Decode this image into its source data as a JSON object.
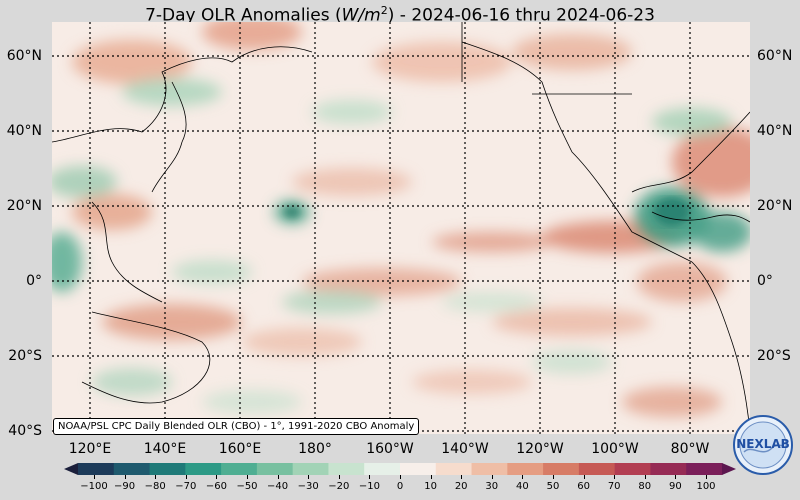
{
  "title": {
    "prefix": "7-Day OLR Anomalies (",
    "unit_base": "W/m",
    "unit_exp": "2",
    "suffix": ") - 2024-06-16 thru 2024-06-23"
  },
  "lat_labels": [
    "60°N",
    "40°N",
    "20°N",
    "0°",
    "20°S",
    "40°S"
  ],
  "lon_labels": [
    "120°E",
    "140°E",
    "160°E",
    "180°",
    "160°W",
    "140°W",
    "120°W",
    "100°W",
    "80°W"
  ],
  "source_note": "NOAA/PSL CPC Daily Blended OLR (CBO) - 1°, 1991-2020 CBO Anomaly",
  "colorbar": {
    "ticks": [
      "−100",
      "−90",
      "−80",
      "−70",
      "−60",
      "−50",
      "−40",
      "−30",
      "−20",
      "−10",
      "0",
      "10",
      "20",
      "30",
      "40",
      "50",
      "60",
      "70",
      "80",
      "90",
      "100"
    ],
    "colors": [
      "#1b1f3b",
      "#1d3b5a",
      "#1f5a6e",
      "#1f7a78",
      "#2d9a86",
      "#4fae92",
      "#78c0a0",
      "#a2d3b6",
      "#c8e3cf",
      "#e6f0e8",
      "#f7efea",
      "#f6dccd",
      "#efbea6",
      "#e59d82",
      "#d77c66",
      "#c65a55",
      "#b23e52",
      "#962b55",
      "#7b1f5a",
      "#5c164f"
    ]
  },
  "logo": {
    "text": "NEXLAB"
  }
}
